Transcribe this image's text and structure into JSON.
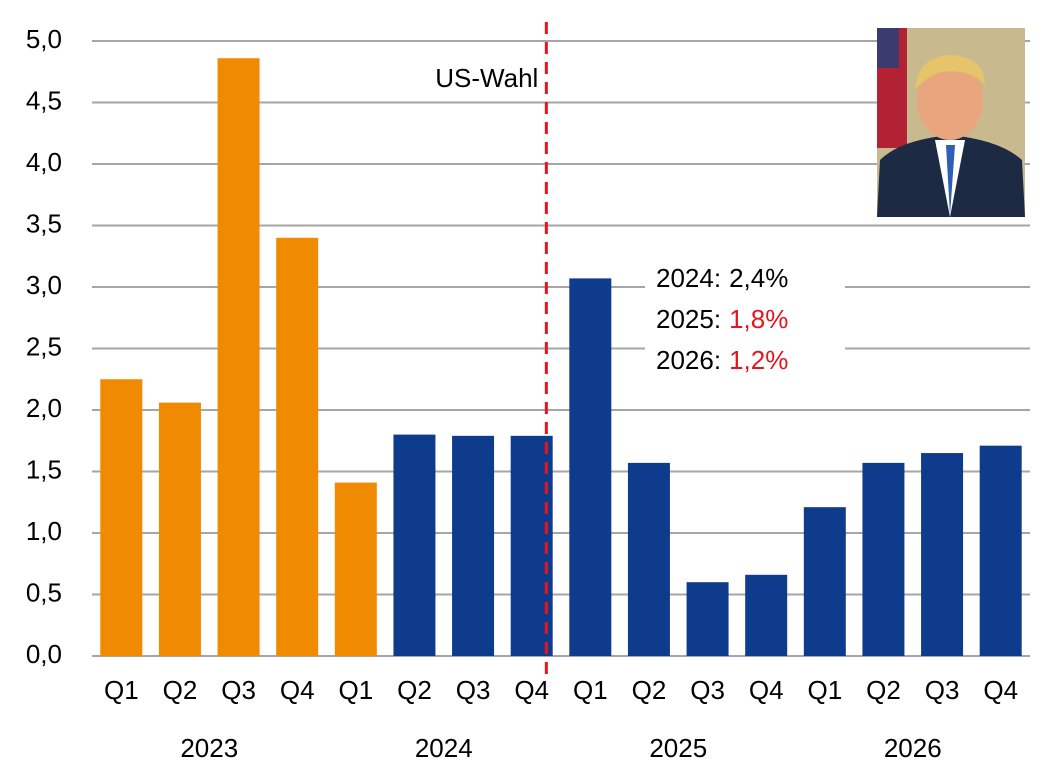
{
  "chart_data": {
    "type": "bar",
    "categories": [
      "Q1",
      "Q2",
      "Q3",
      "Q4",
      "Q1",
      "Q2",
      "Q3",
      "Q4",
      "Q1",
      "Q2",
      "Q3",
      "Q4",
      "Q1",
      "Q2",
      "Q3",
      "Q4"
    ],
    "x_groups": [
      "2023",
      "2024",
      "2025",
      "2026"
    ],
    "values": [
      2.25,
      2.06,
      4.86,
      3.4,
      1.41,
      1.8,
      1.79,
      1.79,
      3.07,
      1.57,
      0.6,
      0.66,
      1.21,
      1.57,
      1.65,
      1.71
    ],
    "colors": [
      "#f08a00",
      "#f08a00",
      "#f08a00",
      "#f08a00",
      "#f08a00",
      "#0f3b8c",
      "#0f3b8c",
      "#0f3b8c",
      "#0f3b8c",
      "#0f3b8c",
      "#0f3b8c",
      "#0f3b8c",
      "#0f3b8c",
      "#0f3b8c",
      "#0f3b8c",
      "#0f3b8c"
    ],
    "ylim": [
      0,
      5
    ],
    "yticks": [
      {
        "value": 0,
        "label": "0,0"
      },
      {
        "value": 0.5,
        "label": "0,5"
      },
      {
        "value": 1,
        "label": "1,0"
      },
      {
        "value": 1.5,
        "label": "1,5"
      },
      {
        "value": 2,
        "label": "2,0"
      },
      {
        "value": 2.5,
        "label": "2,5"
      },
      {
        "value": 3,
        "label": "3,0"
      },
      {
        "value": 3.5,
        "label": "3,5"
      },
      {
        "value": 4,
        "label": "4,0"
      },
      {
        "value": 4.5,
        "label": "4,5"
      },
      {
        "value": 5,
        "label": "5,0"
      }
    ],
    "grid": true,
    "event_label": "US-Wahl",
    "event_color": "#e8141c",
    "forecasts": [
      {
        "year": "2024:",
        "value": "2,4%",
        "color": "#000000"
      },
      {
        "year": "2025:",
        "value": "1,8%",
        "color": "#e8141c"
      },
      {
        "year": "2026:",
        "value": "1,2%",
        "color": "#e8141c"
      }
    ]
  }
}
